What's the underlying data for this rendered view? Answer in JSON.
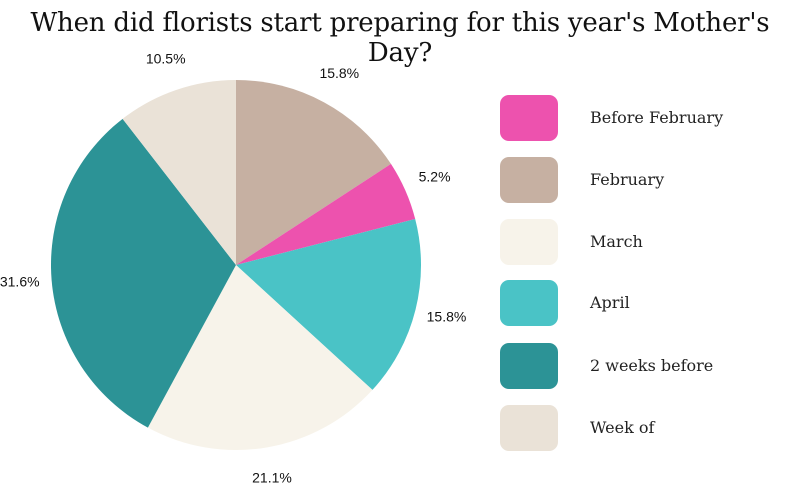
{
  "chart_data": {
    "type": "pie",
    "title": "When did florists start preparing for this year's Mother's Day?",
    "legend_position": "right",
    "slices": [
      {
        "label": "Before February",
        "value": 5.2,
        "value_label": "5.2%",
        "color": "#ED52AE"
      },
      {
        "label": "February",
        "value": 15.8,
        "value_label": "15.8%",
        "color": "#C6B0A2"
      },
      {
        "label": "March",
        "value": 21.1,
        "value_label": "21.1%",
        "color": "#F7F3EA"
      },
      {
        "label": "April",
        "value": 15.8,
        "value_label": "15.8%",
        "color": "#4AC3C6"
      },
      {
        "label": "2 weeks before",
        "value": 31.6,
        "value_label": "31.6%",
        "color": "#2C9396"
      },
      {
        "label": "Week of",
        "value": 10.5,
        "value_label": "10.5%",
        "color": "#EAE2D7"
      }
    ]
  }
}
